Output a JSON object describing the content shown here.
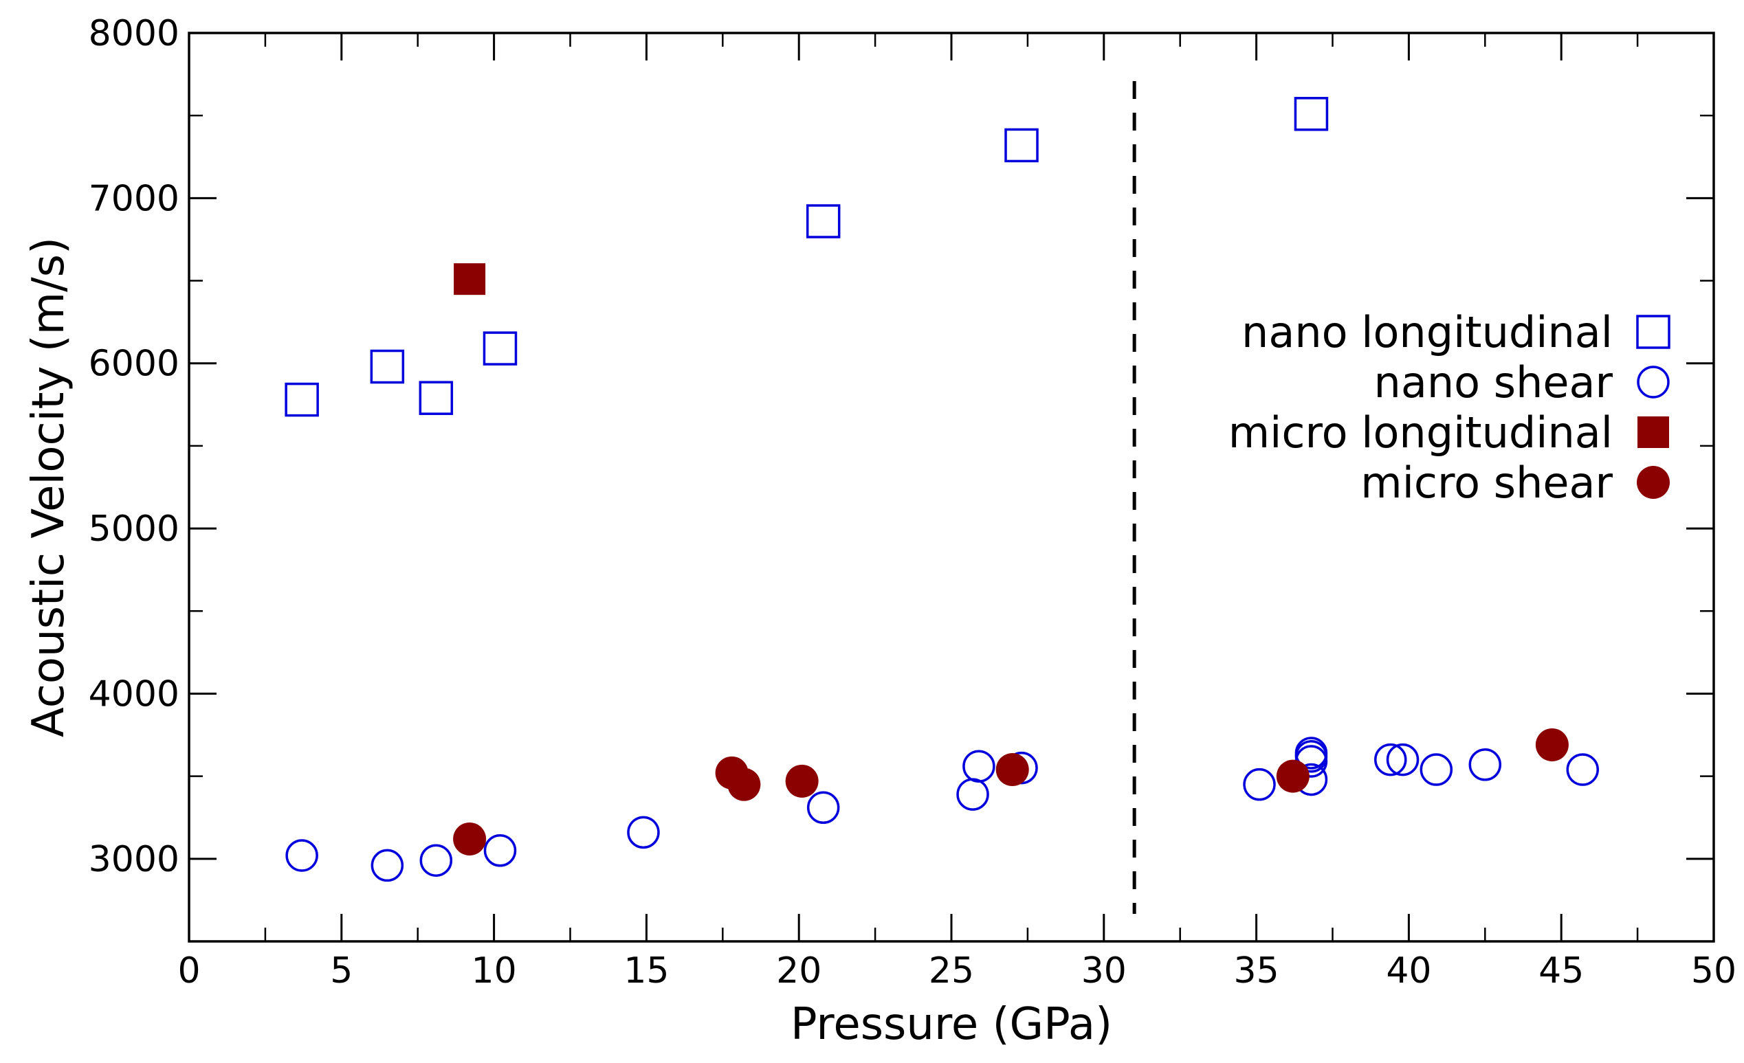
{
  "chart_data": {
    "type": "scatter",
    "title": "",
    "xlabel": "Pressure (GPa)",
    "ylabel": "Acoustic Velocity (m/s)",
    "xlim": [
      0,
      50
    ],
    "ylim": [
      2500,
      8000
    ],
    "xticks": [
      0,
      5,
      10,
      15,
      20,
      25,
      30,
      35,
      40,
      45,
      50
    ],
    "xtick_labels": [
      "0",
      "5",
      "10",
      "15",
      "20",
      "25",
      "30",
      "35",
      "40",
      "45",
      "50"
    ],
    "yticks": [
      3000,
      4000,
      5000,
      6000,
      7000,
      8000
    ],
    "ytick_labels": [
      "3000",
      "4000",
      "5000",
      "6000",
      "7000",
      "8000"
    ],
    "grid": false,
    "legend_position": "right",
    "reference_line": {
      "orientation": "vertical",
      "x": 31,
      "style": "dashed",
      "color": "#000000"
    },
    "series": [
      {
        "name": "nano longitudinal",
        "marker": "square",
        "filled": false,
        "color": "#0000dd",
        "points": [
          [
            3.7,
            5780
          ],
          [
            6.5,
            5980
          ],
          [
            8.1,
            5790
          ],
          [
            10.2,
            6090
          ],
          [
            20.8,
            6860
          ],
          [
            27.3,
            7320
          ],
          [
            36.8,
            7510
          ]
        ]
      },
      {
        "name": "nano shear",
        "marker": "circle",
        "filled": false,
        "color": "#0000dd",
        "points": [
          [
            3.7,
            3020
          ],
          [
            6.5,
            2960
          ],
          [
            8.1,
            2990
          ],
          [
            10.2,
            3050
          ],
          [
            14.9,
            3160
          ],
          [
            20.8,
            3310
          ],
          [
            25.7,
            3390
          ],
          [
            25.9,
            3560
          ],
          [
            27.3,
            3550
          ],
          [
            35.1,
            3450
          ],
          [
            36.8,
            3480
          ],
          [
            36.8,
            3590
          ],
          [
            36.8,
            3620
          ],
          [
            36.8,
            3640
          ],
          [
            39.4,
            3600
          ],
          [
            39.8,
            3600
          ],
          [
            40.9,
            3540
          ],
          [
            42.5,
            3570
          ],
          [
            45.7,
            3540
          ]
        ]
      },
      {
        "name": "micro longitudinal",
        "marker": "square",
        "filled": true,
        "color": "#8b0000",
        "points": [
          [
            9.2,
            6510
          ]
        ]
      },
      {
        "name": "micro shear",
        "marker": "circle",
        "filled": true,
        "color": "#8b0000",
        "points": [
          [
            9.2,
            3120
          ],
          [
            17.8,
            3520
          ],
          [
            18.2,
            3450
          ],
          [
            20.1,
            3470
          ],
          [
            27.0,
            3540
          ],
          [
            36.2,
            3500
          ],
          [
            44.7,
            3690
          ]
        ]
      }
    ]
  }
}
